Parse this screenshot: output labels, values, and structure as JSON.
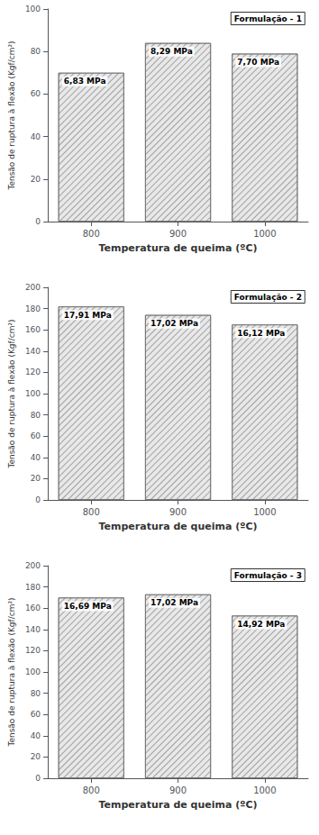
{
  "chart_data": [
    {
      "type": "bar",
      "title": "Formulação - 1",
      "x": [
        800,
        900,
        1000
      ],
      "values": [
        70,
        84,
        79
      ],
      "annotations": [
        "6,83 MPa",
        "8,29 MPa",
        "7,70 MPa"
      ],
      "xlim": [
        750,
        1050
      ],
      "xticks": [
        800,
        900,
        1000
      ],
      "ylim": [
        0,
        100
      ],
      "yticks": [
        0,
        20,
        40,
        60,
        80,
        100
      ],
      "xlabel": "Temperatura de queima (ºC)",
      "ylabel": "Tensão de ruptura à flexão (Kgf/cm²)",
      "color": "#e8e8e8",
      "grid": false
    },
    {
      "type": "bar",
      "title": "Formulação - 2",
      "x": [
        800,
        900,
        1000
      ],
      "values": [
        182,
        174,
        165
      ],
      "annotations": [
        "17,91 MPa",
        "17,02 MPa",
        "16,12 MPa"
      ],
      "xlim": [
        750,
        1050
      ],
      "xticks": [
        800,
        900,
        1000
      ],
      "ylim": [
        0,
        200
      ],
      "yticks": [
        0,
        20,
        40,
        60,
        80,
        100,
        120,
        140,
        160,
        180,
        200
      ],
      "xlabel": "Temperatura de queima (ºC)",
      "ylabel": "Tensão de ruptura à flexão (Kgf/cm²)",
      "color": "#e8e8e8",
      "grid": false
    },
    {
      "type": "bar",
      "title": "Formulação - 3",
      "x": [
        800,
        900,
        1000
      ],
      "values": [
        170,
        173,
        153
      ],
      "annotations": [
        "16,69 MPa",
        "17,02 MPa",
        "14,92 MPa"
      ],
      "xlim": [
        750,
        1050
      ],
      "xticks": [
        800,
        900,
        1000
      ],
      "ylim": [
        0,
        200
      ],
      "yticks": [
        0,
        20,
        40,
        60,
        80,
        100,
        120,
        140,
        160,
        180,
        200
      ],
      "xlabel": "Temperatura de queima (ºC)",
      "ylabel": "Tensão de ruptura à flexão (Kgf/cm²)",
      "color": "#e8e8e8",
      "grid": false
    }
  ]
}
